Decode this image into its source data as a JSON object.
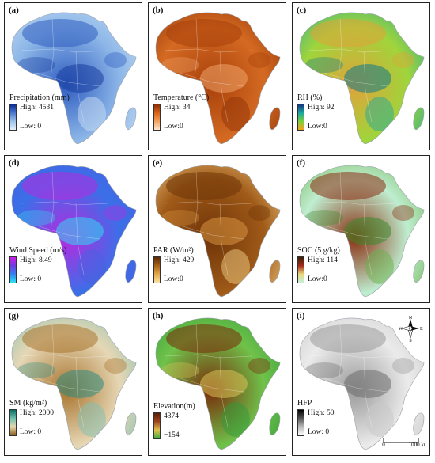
{
  "panels": [
    {
      "id": "a",
      "tag": "(a)",
      "title": "Precipitation (mm)",
      "high": "High: 4531",
      "low": "Low: 0",
      "grad": [
        "#0b2a8f",
        "#4a78d0",
        "#9ec3ea",
        "#e4f0fb"
      ],
      "fill": "#8db7e8",
      "accents": [
        "#2f5cc0",
        "#1a3e9e",
        "#c9def4"
      ],
      "sea": null
    },
    {
      "id": "b",
      "tag": "(b)",
      "title": "Temperature (°C)",
      "high": "High: 34",
      "low": "Low:0",
      "grad": [
        "#8a2d05",
        "#d9621a",
        "#f3a35f",
        "#fde5cc"
      ],
      "fill": "#d46a22",
      "accents": [
        "#a8400b",
        "#f0a46a",
        "#8f3206"
      ],
      "sea": null
    },
    {
      "id": "c",
      "tag": "(c)",
      "title": "RH (%)",
      "high": "High: 92",
      "low": "Low:0",
      "grad": [
        "#14357f",
        "#1aa6a0",
        "#7dd13a",
        "#f4a21c"
      ],
      "fill": "#9fd53b",
      "accents": [
        "#e0a23a",
        "#0d7a8c",
        "#26a89a"
      ],
      "sea": null
    },
    {
      "id": "d",
      "tag": "(d)",
      "title": "Wind Speed (m/s)",
      "high": "High: 8.49",
      "low": "Low: 0",
      "grad": [
        "#d21ce8",
        "#6e3fe0",
        "#3a7ff0",
        "#2be3f0"
      ],
      "fill": "#3b6fe8",
      "accents": [
        "#b72ae0",
        "#2fd8f2",
        "#4a5fe0"
      ],
      "sea": null
    },
    {
      "id": "e",
      "tag": "(e)",
      "title": "PAR (W/m²)",
      "high": "High: 429",
      "low": "Low:0",
      "grad": [
        "#5a2a05",
        "#a8621a",
        "#e3a64a",
        "#fbe2a0"
      ],
      "fill": "#a05a18",
      "accents": [
        "#6e3408",
        "#d99440",
        "#f2cf86"
      ],
      "sea": null
    },
    {
      "id": "f",
      "tag": "(f)",
      "title": "SOC (5 g/kg)",
      "high": "High: 114",
      "low": "Low:0",
      "grad": [
        "#3a2208",
        "#a52a1a",
        "#e7d67a",
        "#c8f0d8"
      ],
      "fill": "#bfeed0",
      "accents": [
        "#8a2e12",
        "#3d8a2c",
        "#6ab04a"
      ],
      "sea": null
    },
    {
      "id": "g",
      "tag": "(g)",
      "title": "SM (kg/m²)",
      "high": "High: 2000",
      "low": "Low: 0",
      "grad": [
        "#0b6e63",
        "#6fc0b0",
        "#e8d9b0",
        "#8a5a1a"
      ],
      "fill": "#e6d7b5",
      "accents": [
        "#a8742e",
        "#2e8d80",
        "#7fbfb2"
      ],
      "sea": null
    },
    {
      "id": "h",
      "tag": "(h)",
      "title": "Elevation(m)",
      "high": "4374",
      "low": "−154",
      "grad": [
        "#5a1e05",
        "#a0421c",
        "#e0c050",
        "#3cae3c"
      ],
      "fill": "#6fc24a",
      "accents": [
        "#7a2a0a",
        "#d9c558",
        "#2f9a3a"
      ],
      "sea": null
    },
    {
      "id": "i",
      "tag": "(i)",
      "title": "HFP",
      "high": "High: 50",
      "low": "Low: 0",
      "grad": [
        "#000000",
        "#555555",
        "#bbbbbb",
        "#ffffff"
      ],
      "fill": "#ebebeb",
      "accents": [
        "#9a9a9a",
        "#6e6e6e",
        "#c8c8c8"
      ],
      "sea": null
    }
  ],
  "compass": {
    "n": "N",
    "s": "S",
    "e": "E",
    "w": "W"
  },
  "scale": {
    "zero": "0",
    "dist": "1000 km"
  }
}
